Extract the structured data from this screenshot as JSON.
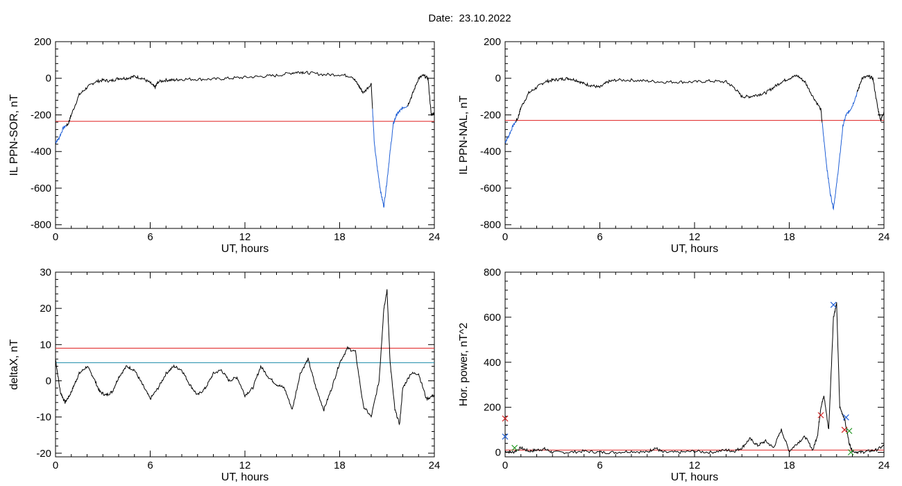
{
  "figure_title": "Date:  23.10.2022",
  "chart_data": [
    {
      "id": "top-left",
      "type": "line",
      "ylabel": "IL PPN-SOR, nT",
      "xlabel": "UT, hours",
      "xlim": [
        0,
        24
      ],
      "ylim": [
        -820,
        200
      ],
      "xticks": [
        0,
        6,
        12,
        18,
        24
      ],
      "yticks": [
        200,
        0,
        -200,
        -400,
        -600,
        -800
      ],
      "threshold": -235,
      "colors": {
        "series": "#000000",
        "highlight": "#1f5fd6",
        "threshold": "#e02020"
      },
      "series": [
        {
          "x": [
            0,
            0.2,
            0.5,
            0.8,
            1,
            1.5,
            2,
            2.5,
            3,
            3.5,
            4,
            4.5,
            5,
            5.5,
            6,
            6.3,
            6.5,
            7,
            7.5,
            8,
            9,
            10,
            11,
            12,
            13,
            14,
            15,
            15.5,
            16,
            17,
            18,
            18.8,
            19.2,
            19.5,
            20,
            20.2,
            20.4,
            20.6,
            20.8,
            21,
            21.2,
            21.4,
            21.6,
            21.8,
            22,
            22.3,
            22.6,
            23,
            23.3,
            23.6,
            23.8,
            24
          ],
          "y": [
            -350,
            -330,
            -270,
            -250,
            -200,
            -90,
            -50,
            -20,
            -10,
            -15,
            0,
            0,
            10,
            0,
            -25,
            -50,
            -20,
            -10,
            -10,
            -5,
            -5,
            -5,
            0,
            5,
            10,
            15,
            30,
            35,
            30,
            20,
            20,
            10,
            -40,
            -80,
            -30,
            -360,
            -500,
            -620,
            -700,
            -560,
            -400,
            -250,
            -200,
            -180,
            -160,
            -150,
            -90,
            0,
            15,
            0,
            -200,
            -190
          ]
        }
      ],
      "highlight_ranges": [
        [
          0,
          0.7
        ],
        [
          20.1,
          22.3
        ]
      ]
    },
    {
      "id": "top-right",
      "type": "line",
      "ylabel": "IL PPN-NAL, nT",
      "xlabel": "UT, hours",
      "xlim": [
        0,
        24
      ],
      "ylim": [
        -820,
        200
      ],
      "xticks": [
        0,
        6,
        12,
        18,
        24
      ],
      "yticks": [
        200,
        0,
        -200,
        -400,
        -600,
        -800
      ],
      "threshold": -230,
      "colors": {
        "series": "#000000",
        "highlight": "#1f5fd6",
        "threshold": "#e02020"
      },
      "series": [
        {
          "x": [
            0,
            0.2,
            0.5,
            0.8,
            1,
            1.5,
            2,
            2.5,
            3,
            3.5,
            4,
            4.5,
            5,
            5.5,
            6,
            6.5,
            7,
            8,
            9,
            10,
            11,
            12,
            13,
            14,
            14.5,
            15,
            15.5,
            16,
            16.5,
            17,
            17.5,
            18,
            18.5,
            19,
            19.5,
            20,
            20.2,
            20.4,
            20.6,
            20.8,
            21,
            21.2,
            21.4,
            21.6,
            21.8,
            22,
            22.3,
            22.6,
            23,
            23.3,
            23.6,
            23.8,
            24
          ],
          "y": [
            -350,
            -320,
            -260,
            -220,
            -160,
            -80,
            -50,
            -20,
            -10,
            -5,
            0,
            -10,
            -30,
            -40,
            -50,
            -20,
            -10,
            -10,
            -15,
            -20,
            -20,
            -20,
            -15,
            -20,
            -50,
            -100,
            -100,
            -90,
            -80,
            -50,
            -20,
            0,
            15,
            -20,
            -100,
            -170,
            -340,
            -500,
            -630,
            -710,
            -580,
            -430,
            -260,
            -200,
            -180,
            -150,
            -80,
            0,
            10,
            0,
            -160,
            -230,
            -180
          ]
        }
      ],
      "highlight_ranges": [
        [
          0,
          0.7
        ],
        [
          20.1,
          22.3
        ]
      ]
    },
    {
      "id": "bottom-left",
      "type": "line",
      "ylabel": "deltaX, nT",
      "xlabel": "UT, hours",
      "xlim": [
        0,
        24
      ],
      "ylim": [
        -21,
        30
      ],
      "xticks": [
        0,
        6,
        12,
        18,
        24
      ],
      "yticks": [
        30,
        20,
        10,
        0,
        -10,
        -20
      ],
      "threshold_lines": [
        9,
        5
      ],
      "colors": {
        "series": "#000000",
        "line1": "#e02020",
        "line2": "#1a8aa8"
      },
      "series": [
        {
          "x": [
            0,
            0.3,
            0.6,
            0.9,
            1.2,
            1.5,
            2,
            2.4,
            2.8,
            3.2,
            3.6,
            4,
            4.5,
            5,
            5.5,
            6,
            6.5,
            7,
            7.5,
            8,
            8.5,
            9,
            9.5,
            10,
            10.5,
            11,
            11.5,
            12,
            12.5,
            13,
            13.5,
            14,
            14.5,
            15,
            15.5,
            16,
            16.5,
            17,
            17.5,
            18,
            18.5,
            19,
            19.5,
            20,
            20.5,
            20.8,
            21,
            21.2,
            21.5,
            21.8,
            22,
            22.5,
            23,
            23.5,
            24
          ],
          "y": [
            6,
            -3,
            -6,
            -4,
            -1,
            2,
            4,
            1,
            -3,
            -4,
            -3,
            1,
            4,
            3,
            -1,
            -5,
            -2,
            2,
            4,
            3,
            -1,
            -4,
            -2,
            2,
            3,
            0,
            1,
            -4,
            -2,
            4,
            1,
            -1,
            -2,
            -8,
            2,
            6,
            -2,
            -8,
            -2,
            5,
            9,
            8,
            -7,
            -10,
            0,
            20,
            25,
            5,
            -8,
            -12,
            -2,
            2,
            2,
            -5,
            -4
          ]
        }
      ]
    },
    {
      "id": "bottom-right",
      "type": "line",
      "ylabel": "Hor. power, nT^2",
      "xlabel": "UT, hours",
      "xlim": [
        0,
        24
      ],
      "ylim": [
        -20,
        800
      ],
      "xticks": [
        0,
        6,
        12,
        18,
        24
      ],
      "yticks": [
        800,
        600,
        400,
        200,
        0
      ],
      "threshold": 10,
      "colors": {
        "series": "#000000",
        "threshold": "#e02020"
      },
      "series": [
        {
          "x": [
            0,
            0.5,
            1,
            1.5,
            2,
            2.5,
            3,
            4,
            5,
            6,
            7,
            8,
            9,
            9.5,
            10,
            11,
            12,
            13,
            14,
            14.5,
            15,
            15.5,
            16,
            16.5,
            17,
            17.5,
            18,
            18.5,
            19,
            19.5,
            19.8,
            20,
            20.2,
            20.5,
            20.8,
            21,
            21.2,
            21.5,
            21.8,
            22,
            22.5,
            23,
            23.5,
            24
          ],
          "y": [
            5,
            0,
            20,
            5,
            10,
            15,
            0,
            0,
            5,
            0,
            0,
            5,
            0,
            20,
            0,
            0,
            5,
            0,
            10,
            5,
            20,
            60,
            30,
            50,
            20,
            100,
            5,
            40,
            70,
            10,
            80,
            200,
            250,
            100,
            600,
            660,
            200,
            150,
            40,
            5,
            0,
            5,
            10,
            30
          ]
        }
      ],
      "markers": [
        {
          "x": 20.8,
          "y": 655,
          "symbol": "x",
          "color": "#1f5fd6"
        },
        {
          "x": 21.6,
          "y": 155,
          "symbol": "x",
          "color": "#1f5fd6"
        },
        {
          "x": 21.5,
          "y": 100,
          "symbol": "x",
          "color": "#d02020"
        },
        {
          "x": 21.8,
          "y": 95,
          "symbol": "x",
          "color": "#2a9a2a"
        },
        {
          "x": 20.0,
          "y": 165,
          "symbol": "x",
          "color": "#d02020"
        },
        {
          "x": 0.0,
          "y": 150,
          "symbol": "x",
          "color": "#d02020"
        },
        {
          "x": 0.0,
          "y": 70,
          "symbol": "x",
          "color": "#1f5fd6"
        },
        {
          "x": 0.6,
          "y": 20,
          "symbol": "x",
          "color": "#2a9a2a"
        },
        {
          "x": 21.9,
          "y": 0,
          "symbol": "x",
          "color": "#2a9a2a"
        }
      ]
    }
  ]
}
